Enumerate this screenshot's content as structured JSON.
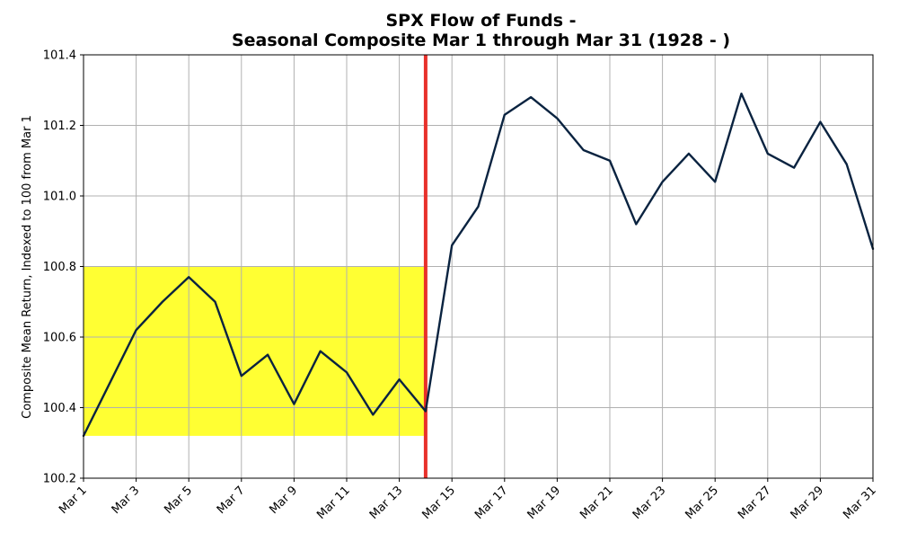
{
  "chart_data": {
    "type": "line",
    "title": [
      "SPX Flow of Funds -",
      "Seasonal Composite Mar 1 through Mar 31 (1928 - )"
    ],
    "xlabel": "",
    "ylabel": "Composite Mean Return, Indexed to 100 from Mar 1",
    "ylim": [
      100.2,
      101.4
    ],
    "yticks": [
      "100.2",
      "100.4",
      "100.6",
      "100.8",
      "101.0",
      "101.2",
      "101.4"
    ],
    "xticks": [
      {
        "day": 1,
        "label": "Mar 1"
      },
      {
        "day": 3,
        "label": "Mar 3"
      },
      {
        "day": 5,
        "label": "Mar 5"
      },
      {
        "day": 7,
        "label": "Mar 7"
      },
      {
        "day": 9,
        "label": "Mar 9"
      },
      {
        "day": 11,
        "label": "Mar 11"
      },
      {
        "day": 13,
        "label": "Mar 13"
      },
      {
        "day": 15,
        "label": "Mar 15"
      },
      {
        "day": 17,
        "label": "Mar 17"
      },
      {
        "day": 19,
        "label": "Mar 19"
      },
      {
        "day": 21,
        "label": "Mar 21"
      },
      {
        "day": 23,
        "label": "Mar 23"
      },
      {
        "day": 25,
        "label": "Mar 25"
      },
      {
        "day": 27,
        "label": "Mar 27"
      },
      {
        "day": 29,
        "label": "Mar 29"
      },
      {
        "day": 31,
        "label": "Mar 31"
      }
    ],
    "grid": true,
    "series": [
      {
        "color": "#0a2340",
        "x": [
          1,
          2,
          3,
          4,
          5,
          6,
          7,
          8,
          9,
          10,
          11,
          12,
          13,
          14,
          15,
          16,
          17,
          18,
          19,
          20,
          21,
          22,
          23,
          24,
          25,
          26,
          27,
          28,
          29,
          30,
          31
        ],
        "values": [
          100.32,
          100.47,
          100.62,
          100.7,
          100.77,
          100.7,
          100.49,
          100.55,
          100.41,
          100.56,
          100.5,
          100.38,
          100.48,
          100.39,
          100.86,
          100.97,
          101.23,
          101.28,
          101.22,
          101.13,
          101.1,
          100.92,
          101.04,
          101.12,
          101.04,
          101.29,
          101.12,
          101.08,
          101.21,
          101.09,
          100.85
        ]
      }
    ],
    "highlight_box": {
      "x_start": 1,
      "x_end": 14,
      "y_low": 100.32,
      "y_high": 100.8,
      "color": "#ffff33"
    },
    "vertical_marker": {
      "x": 14,
      "color": "#e8302a"
    }
  }
}
